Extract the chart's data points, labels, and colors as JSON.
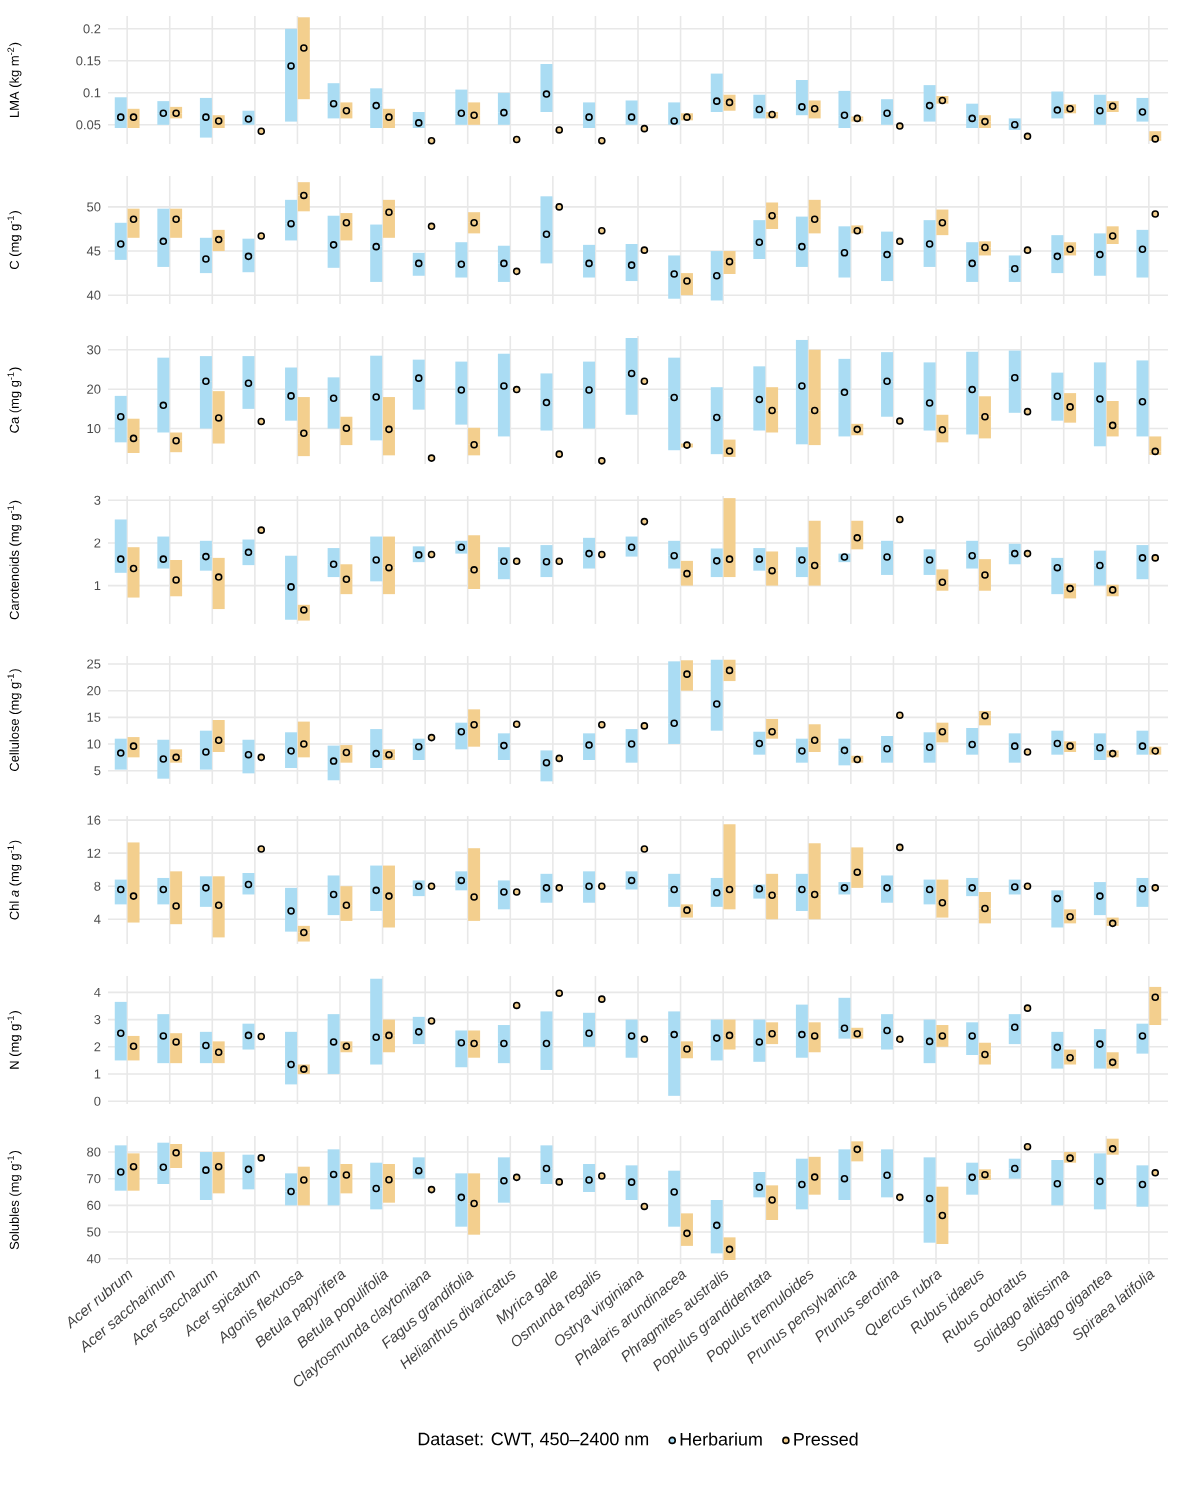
{
  "chart_data": [
    {
      "type": "scatter",
      "ylabel": "LMA (kg m$^{-2}$)",
      "categories": [
        null,
        null,
        null,
        null,
        null,
        null,
        null,
        null,
        null,
        null,
        null,
        null,
        null,
        null,
        null,
        null,
        null,
        null,
        null,
        null,
        null,
        null,
        null,
        null,
        null
      ],
      "ylim": [
        0.02,
        0.22
      ],
      "yticks": [
        0.05,
        0.1,
        0.15,
        0.2
      ],
      "grid": true,
      "tick_labels": "y",
      "series": [
        {
          "color": "#aadcf3",
          "values": [
            0.062,
            0.068,
            0.062,
            0.059,
            0.142,
            0.083,
            0.08,
            0.053,
            0.068,
            0.069,
            0.098,
            0.062,
            0.062,
            0.056,
            0.087,
            0.074,
            0.078,
            0.065,
            0.068,
            0.08,
            0.06,
            0.05,
            0.073,
            0.072,
            0.07
          ],
          "errors": [
            [
              0.045,
              0.093
            ],
            [
              0.05,
              0.087
            ],
            [
              0.03,
              0.092
            ],
            [
              0.05,
              0.072
            ],
            [
              0.055,
              0.2
            ],
            [
              0.06,
              0.115
            ],
            [
              0.045,
              0.107
            ],
            [
              0.045,
              0.07
            ],
            [
              0.05,
              0.105
            ],
            [
              0.05,
              0.1
            ],
            [
              0.07,
              0.145
            ],
            [
              0.045,
              0.085
            ],
            [
              0.05,
              0.088
            ],
            [
              0.05,
              0.085
            ],
            [
              0.07,
              0.13
            ],
            [
              0.06,
              0.097
            ],
            [
              0.065,
              0.12
            ],
            [
              0.045,
              0.103
            ],
            [
              0.05,
              0.09
            ],
            [
              0.055,
              0.112
            ],
            [
              0.045,
              0.083
            ],
            [
              0.042,
              0.06
            ],
            [
              0.06,
              0.102
            ],
            [
              0.05,
              0.097
            ],
            [
              0.055,
              0.092
            ]
          ]
        },
        {
          "color": "#f3cf8e",
          "values": [
            0.062,
            0.068,
            0.056,
            0.04,
            0.17,
            0.072,
            0.062,
            0.025,
            0.065,
            0.027,
            0.042,
            0.025,
            0.044,
            0.062,
            0.085,
            0.066,
            0.075,
            0.06,
            0.048,
            0.088,
            0.055,
            0.032,
            0.075,
            0.079,
            0.028
          ],
          "errors": [
            [
              0.045,
              0.075
            ],
            [
              0.06,
              0.078
            ],
            [
              0.045,
              0.065
            ],
            null,
            [
              0.09,
              0.218
            ],
            [
              0.06,
              0.085
            ],
            [
              0.045,
              0.075
            ],
            null,
            [
              0.05,
              0.085
            ],
            null,
            null,
            null,
            null,
            [
              0.057,
              0.068
            ],
            [
              0.072,
              0.097
            ],
            [
              0.06,
              0.07
            ],
            [
              0.06,
              0.088
            ],
            [
              0.055,
              0.063
            ],
            null,
            [
              0.083,
              0.095
            ],
            [
              0.045,
              0.065
            ],
            null,
            [
              0.068,
              0.082
            ],
            [
              0.07,
              0.087
            ],
            [
              0.025,
              0.04
            ]
          ]
        }
      ]
    },
    {
      "type": "scatter",
      "ylabel": "C (mg g$^{-1}$)",
      "categories": [
        null,
        null,
        null,
        null,
        null,
        null,
        null,
        null,
        null,
        null,
        null,
        null,
        null,
        null,
        null,
        null,
        null,
        null,
        null,
        null,
        null,
        null,
        null,
        null,
        null
      ],
      "ylim": [
        39,
        53.5
      ],
      "yticks": [
        40,
        45,
        50
      ],
      "grid": true,
      "tick_labels": "y",
      "series": [
        {
          "color": "#aadcf3",
          "values": [
            45.8,
            46.1,
            44.1,
            44.4,
            48.1,
            45.7,
            45.5,
            43.6,
            43.5,
            43.6,
            46.9,
            43.6,
            43.4,
            42.4,
            42.2,
            46.0,
            45.5,
            44.8,
            44.6,
            45.8,
            43.6,
            43.0,
            44.4,
            44.6,
            45.2
          ],
          "errors": [
            [
              44,
              48.2
            ],
            [
              43.2,
              49.8
            ],
            [
              42.5,
              46.5
            ],
            [
              42.6,
              46.4
            ],
            [
              46.2,
              50.8
            ],
            [
              43.1,
              49
            ],
            [
              41.5,
              48
            ],
            [
              42.2,
              44.8
            ],
            [
              42,
              46
            ],
            [
              41.5,
              45.6
            ],
            [
              43.6,
              51.2
            ],
            [
              42,
              45.7
            ],
            [
              41.6,
              45.8
            ],
            [
              39.6,
              44.5
            ],
            [
              39.4,
              45
            ],
            [
              44.1,
              48.5
            ],
            [
              43.2,
              48.9
            ],
            [
              42,
              47.8
            ],
            [
              41.6,
              47.2
            ],
            [
              43.2,
              48.5
            ],
            [
              41.5,
              46
            ],
            [
              41.5,
              44.5
            ],
            [
              42.5,
              46.8
            ],
            [
              42.2,
              47
            ],
            [
              42,
              47.4
            ]
          ]
        },
        {
          "color": "#f3cf8e",
          "values": [
            48.6,
            48.6,
            46.3,
            46.7,
            51.3,
            48.2,
            49.4,
            47.8,
            48.2,
            42.7,
            50.0,
            47.3,
            45.1,
            41.6,
            43.8,
            49.0,
            48.6,
            47.3,
            46.1,
            48.2,
            45.4,
            45.1,
            45.2,
            46.7,
            49.2
          ],
          "errors": [
            [
              46.5,
              49.8
            ],
            [
              46.5,
              49.8
            ],
            [
              45,
              47.4
            ],
            null,
            [
              49.5,
              52.8
            ],
            [
              46.2,
              49.3
            ],
            [
              46.5,
              50.8
            ],
            null,
            [
              47,
              49.4
            ],
            null,
            null,
            null,
            null,
            [
              40,
              42.5
            ],
            [
              42.4,
              45
            ],
            [
              47.5,
              50.5
            ],
            [
              47,
              50.8
            ],
            [
              47,
              47.9
            ],
            null,
            [
              46.8,
              49.7
            ],
            [
              44.5,
              46.1
            ],
            null,
            [
              44.5,
              46
            ],
            [
              45.8,
              47.8
            ],
            null
          ]
        }
      ]
    },
    {
      "type": "scatter",
      "ylabel": "Ca (mg g$^{-1}$)",
      "categories": [
        null,
        null,
        null,
        null,
        null,
        null,
        null,
        null,
        null,
        null,
        null,
        null,
        null,
        null,
        null,
        null,
        null,
        null,
        null,
        null,
        null,
        null,
        null,
        null,
        null
      ],
      "ylim": [
        1,
        33.5
      ],
      "yticks": [
        10,
        20,
        30
      ],
      "grid": true,
      "tick_labels": "y",
      "series": [
        {
          "color": "#aadcf3",
          "values": [
            13,
            15.9,
            22,
            21.5,
            18.3,
            17.7,
            18,
            22.8,
            19.8,
            20.8,
            16.6,
            19.8,
            24,
            17.9,
            12.8,
            17.4,
            20.8,
            19.2,
            22,
            16.5,
            19.9,
            22.9,
            18.2,
            17.5,
            16.8
          ],
          "errors": [
            [
              6.5,
              18.3
            ],
            [
              9,
              28
            ],
            [
              10,
              28.4
            ],
            [
              15,
              28.4
            ],
            [
              12,
              25.5
            ],
            [
              10,
              23
            ],
            [
              7,
              28.5
            ],
            [
              14.8,
              27.5
            ],
            [
              11,
              27
            ],
            [
              8,
              29
            ],
            [
              9.5,
              24
            ],
            [
              10,
              27
            ],
            [
              13.5,
              33
            ],
            [
              4.5,
              28
            ],
            [
              3.5,
              20.5
            ],
            [
              9.5,
              25.8
            ],
            [
              6,
              32.5
            ],
            [
              8,
              27.7
            ],
            [
              13,
              29.4
            ],
            [
              9.5,
              26.8
            ],
            [
              8.5,
              29.5
            ],
            [
              14,
              29.8
            ],
            [
              12,
              24.2
            ],
            [
              5.5,
              26.8
            ],
            [
              8,
              27.3
            ]
          ]
        },
        {
          "color": "#f3cf8e",
          "values": [
            7.5,
            6.9,
            12.7,
            11.8,
            8.8,
            10.1,
            9.8,
            2.5,
            5.9,
            19.9,
            3.5,
            1.8,
            22,
            5.8,
            4.3,
            14.6,
            14.6,
            9.8,
            11.9,
            9.7,
            13,
            14.3,
            15.5,
            10.8,
            4.2
          ],
          "errors": [
            [
              3.8,
              12.5
            ],
            [
              4,
              9
            ],
            [
              6.2,
              19.5
            ],
            null,
            [
              3,
              18
            ],
            [
              5.8,
              13
            ],
            [
              3.2,
              18
            ],
            null,
            [
              3.2,
              10.2
            ],
            null,
            null,
            null,
            null,
            [
              5.2,
              6.2
            ],
            [
              2.8,
              7.2
            ],
            [
              9,
              20.5
            ],
            [
              5.8,
              30
            ],
            [
              8.3,
              11.2
            ],
            null,
            [
              6.5,
              13.5
            ],
            [
              7.5,
              18.2
            ],
            null,
            [
              11.5,
              19
            ],
            [
              8,
              17
            ],
            [
              3.3,
              8
            ]
          ]
        }
      ]
    },
    {
      "type": "scatter",
      "ylabel": "Carotenoids (mg g$^{-1}$)",
      "categories": [
        null,
        null,
        null,
        null,
        null,
        null,
        null,
        null,
        null,
        null,
        null,
        null,
        null,
        null,
        null,
        null,
        null,
        null,
        null,
        null,
        null,
        null,
        null,
        null,
        null
      ],
      "ylim": [
        0.1,
        3.1
      ],
      "yticks": [
        1,
        2,
        3
      ],
      "grid": true,
      "tick_labels": "y",
      "series": [
        {
          "color": "#aadcf3",
          "values": [
            1.62,
            1.62,
            1.68,
            1.78,
            0.97,
            1.5,
            1.6,
            1.72,
            1.9,
            1.57,
            1.56,
            1.75,
            1.9,
            1.7,
            1.58,
            1.62,
            1.6,
            1.67,
            1.67,
            1.6,
            1.7,
            1.75,
            1.42,
            1.47,
            1.65
          ],
          "errors": [
            [
              1.3,
              2.55
            ],
            [
              1.4,
              2.15
            ],
            [
              1.35,
              2.05
            ],
            [
              1.48,
              2.08
            ],
            [
              0.2,
              1.7
            ],
            [
              1.2,
              1.88
            ],
            [
              1.1,
              2.15
            ],
            [
              1.55,
              1.92
            ],
            [
              1.75,
              2.05
            ],
            [
              1.15,
              1.9
            ],
            [
              1.2,
              1.95
            ],
            [
              1.4,
              2.12
            ],
            [
              1.68,
              2.15
            ],
            [
              1.4,
              2.05
            ],
            [
              1.2,
              1.87
            ],
            [
              1.35,
              1.88
            ],
            [
              1.2,
              1.9
            ],
            [
              1.55,
              1.75
            ],
            [
              1.25,
              2.05
            ],
            [
              1.25,
              1.85
            ],
            [
              1.4,
              2.05
            ],
            [
              1.5,
              1.98
            ],
            [
              0.8,
              1.65
            ],
            [
              1,
              1.82
            ],
            [
              1.15,
              1.95
            ]
          ]
        },
        {
          "color": "#f3cf8e",
          "values": [
            1.4,
            1.13,
            1.2,
            2.3,
            0.43,
            1.15,
            1.42,
            1.73,
            1.37,
            1.57,
            1.57,
            1.73,
            2.5,
            1.28,
            1.62,
            1.35,
            1.47,
            2.12,
            2.55,
            1.08,
            1.25,
            1.75,
            0.93,
            0.9,
            1.65
          ],
          "errors": [
            [
              0.72,
              1.9
            ],
            [
              0.75,
              1.6
            ],
            [
              0.45,
              1.65
            ],
            null,
            [
              0.18,
              0.55
            ],
            [
              0.8,
              1.5
            ],
            [
              0.8,
              2.15
            ],
            null,
            [
              0.92,
              2.18
            ],
            null,
            null,
            null,
            null,
            [
              1,
              1.58
            ],
            [
              1.2,
              3.05
            ],
            [
              1,
              1.8
            ],
            [
              1,
              2.52
            ],
            [
              1.85,
              2.52
            ],
            null,
            [
              0.88,
              1.38
            ],
            [
              0.88,
              1.62
            ],
            null,
            [
              0.7,
              1.05
            ],
            [
              0.75,
              1.02
            ],
            null
          ]
        }
      ]
    },
    {
      "type": "scatter",
      "ylabel": "Cellulose (mg g$^{-1}$)",
      "categories": [
        null,
        null,
        null,
        null,
        null,
        null,
        null,
        null,
        null,
        null,
        null,
        null,
        null,
        null,
        null,
        null,
        null,
        null,
        null,
        null,
        null,
        null,
        null,
        null,
        null
      ],
      "ylim": [
        2.5,
        26.5
      ],
      "yticks": [
        5,
        10,
        15,
        20,
        25
      ],
      "grid": true,
      "tick_labels": "y",
      "series": [
        {
          "color": "#aadcf3",
          "values": [
            8.3,
            7.2,
            8.5,
            8,
            8.7,
            6.8,
            8.2,
            9.5,
            12.3,
            9.7,
            6.5,
            9.8,
            10,
            13.9,
            17.5,
            10.1,
            8.7,
            8.8,
            9.1,
            9.4,
            9.9,
            9.6,
            10.1,
            9.3,
            9.6
          ],
          "errors": [
            [
              5.2,
              11
            ],
            [
              3.5,
              10.8
            ],
            [
              5.2,
              12.5
            ],
            [
              4.5,
              10.8
            ],
            [
              5.5,
              12.2
            ],
            [
              3.2,
              9.7
            ],
            [
              5.5,
              12.8
            ],
            [
              7,
              11
            ],
            [
              9,
              14
            ],
            [
              7,
              12
            ],
            [
              3,
              8.8
            ],
            [
              7,
              12
            ],
            [
              6.5,
              12.8
            ],
            [
              10,
              25.5
            ],
            [
              12.5,
              25.8
            ],
            [
              8,
              12.3
            ],
            [
              6.5,
              11
            ],
            [
              6,
              11
            ],
            [
              6.5,
              11.5
            ],
            [
              6.5,
              12.2
            ],
            [
              8,
              13
            ],
            [
              6.5,
              12
            ],
            [
              8,
              12.5
            ],
            [
              7,
              12
            ],
            [
              8,
              12.5
            ]
          ]
        },
        {
          "color": "#f3cf8e",
          "values": [
            9.6,
            7.5,
            10.7,
            7.5,
            10,
            8.4,
            8,
            11.2,
            13.6,
            13.7,
            7.3,
            13.6,
            13.4,
            23.1,
            23.8,
            12.3,
            10.7,
            7.1,
            15.4,
            12.3,
            15.3,
            8.5,
            9.6,
            8.2,
            8.7
          ],
          "errors": [
            [
              7.5,
              11.3
            ],
            [
              6.5,
              9
            ],
            [
              8.5,
              14.5
            ],
            null,
            [
              7.5,
              14.2
            ],
            [
              6.5,
              9.8
            ],
            [
              7,
              9
            ],
            null,
            [
              9.5,
              16.5
            ],
            null,
            null,
            null,
            null,
            [
              20,
              25.7
            ],
            [
              21.8,
              25.8
            ],
            [
              11,
              14.7
            ],
            [
              8.5,
              13.7
            ],
            [
              6.5,
              7.8
            ],
            null,
            [
              10.3,
              14
            ],
            [
              13.5,
              16.2
            ],
            null,
            [
              8.5,
              10.5
            ],
            [
              7.5,
              8.8
            ],
            [
              8,
              9.5
            ]
          ]
        }
      ]
    },
    {
      "type": "scatter",
      "ylabel": "Chl *a* (mg g$^{-1}$)",
      "categories": [
        null,
        null,
        null,
        null,
        null,
        null,
        null,
        null,
        null,
        null,
        null,
        null,
        null,
        null,
        null,
        null,
        null,
        null,
        null,
        null,
        null,
        null,
        null,
        null,
        null
      ],
      "ylim": [
        1,
        16.5
      ],
      "yticks": [
        4,
        8,
        12,
        16
      ],
      "grid": true,
      "tick_labels": "y",
      "series": [
        {
          "color": "#aadcf3",
          "values": [
            7.6,
            7.6,
            7.8,
            8.2,
            5,
            7,
            7.5,
            8,
            8.7,
            7.3,
            7.8,
            8,
            8.7,
            7.6,
            7.2,
            7.7,
            7.6,
            7.8,
            7.8,
            7.6,
            7.8,
            7.9,
            6.5,
            6.8,
            7.7
          ],
          "errors": [
            [
              5.8,
              8.8
            ],
            [
              5.8,
              9
            ],
            [
              5.5,
              9.2
            ],
            [
              7,
              9.6
            ],
            [
              2.5,
              7.8
            ],
            [
              4.5,
              9.3
            ],
            [
              5,
              10.5
            ],
            [
              6.8,
              8.7
            ],
            [
              7.5,
              9.8
            ],
            [
              5.2,
              8.7
            ],
            [
              6,
              9.5
            ],
            [
              6,
              9.8
            ],
            [
              7.6,
              9.8
            ],
            [
              5.5,
              9.5
            ],
            [
              5.5,
              9
            ],
            [
              6.5,
              8.2
            ],
            [
              5,
              9.5
            ],
            [
              7,
              8.5
            ],
            [
              6,
              9.3
            ],
            [
              5.8,
              8.8
            ],
            [
              6.8,
              9
            ],
            [
              7,
              8.8
            ],
            [
              3,
              7.5
            ],
            [
              4.5,
              8.5
            ],
            [
              5.5,
              9
            ]
          ]
        },
        {
          "color": "#f3cf8e",
          "values": [
            6.8,
            5.6,
            5.7,
            12.5,
            2.4,
            5.7,
            6.8,
            8,
            6.7,
            7.3,
            7.8,
            8,
            12.5,
            5.1,
            7.6,
            6.9,
            7,
            9.7,
            12.7,
            6,
            5.3,
            8,
            4.3,
            3.5,
            7.8
          ],
          "errors": [
            [
              3.6,
              13.3
            ],
            [
              3.4,
              9.8
            ],
            [
              1.8,
              9.2
            ],
            null,
            [
              1.3,
              3.2
            ],
            [
              3.8,
              8
            ],
            [
              3,
              10.5
            ],
            null,
            [
              3.8,
              12.6
            ],
            null,
            null,
            null,
            null,
            [
              4.2,
              5.8
            ],
            [
              5.2,
              15.5
            ],
            [
              4,
              9.5
            ],
            [
              4,
              13.2
            ],
            [
              7.8,
              12.7
            ],
            null,
            [
              4.2,
              8.8
            ],
            [
              3.5,
              7.3
            ],
            null,
            [
              3.5,
              5.2
            ],
            [
              3.2,
              4.2
            ],
            null
          ]
        }
      ]
    },
    {
      "type": "scatter",
      "ylabel": "N (mg g$^{-1}$)",
      "categories": [
        null,
        null,
        null,
        null,
        null,
        null,
        null,
        null,
        null,
        null,
        null,
        null,
        null,
        null,
        null,
        null,
        null,
        null,
        null,
        null,
        null,
        null,
        null,
        null,
        null
      ],
      "ylim": [
        -0.1,
        4.6
      ],
      "yticks": [
        0,
        1,
        2,
        3,
        4
      ],
      "grid": true,
      "tick_labels": "y",
      "series": [
        {
          "color": "#aadcf3",
          "values": [
            2.5,
            2.4,
            2.05,
            2.42,
            1.35,
            2.18,
            2.35,
            2.55,
            2.15,
            2.12,
            2.12,
            2.5,
            2.4,
            2.45,
            2.32,
            2.18,
            2.45,
            2.68,
            2.6,
            2.2,
            2.4,
            2.72,
            1.98,
            2.1,
            2.4
          ],
          "errors": [
            [
              1.5,
              3.65
            ],
            [
              1.4,
              3.2
            ],
            [
              1.4,
              2.55
            ],
            [
              1.9,
              2.85
            ],
            [
              0.62,
              2.55
            ],
            [
              1,
              3.2
            ],
            [
              1.35,
              4.5
            ],
            [
              2.1,
              3.1
            ],
            [
              1.25,
              2.6
            ],
            [
              1.4,
              2.8
            ],
            [
              1.15,
              3.3
            ],
            [
              2,
              3.25
            ],
            [
              1.6,
              3
            ],
            [
              0.2,
              3.3
            ],
            [
              1.5,
              3
            ],
            [
              1.45,
              3
            ],
            [
              1.6,
              3.55
            ],
            [
              2.3,
              3.8
            ],
            [
              1.9,
              3.2
            ],
            [
              1.4,
              3
            ],
            [
              1.7,
              2.9
            ],
            [
              2.1,
              3.2
            ],
            [
              1.2,
              2.55
            ],
            [
              1.2,
              2.65
            ],
            [
              1.75,
              2.85
            ]
          ]
        },
        {
          "color": "#f3cf8e",
          "values": [
            2.02,
            2.18,
            1.8,
            2.38,
            1.18,
            2.02,
            2.42,
            2.95,
            2.12,
            3.52,
            3.97,
            3.75,
            2.28,
            1.92,
            2.42,
            2.48,
            2.4,
            2.48,
            2.28,
            2.4,
            1.72,
            3.42,
            1.6,
            1.43,
            3.82
          ],
          "errors": [
            [
              1.5,
              2.4
            ],
            [
              1.4,
              2.5
            ],
            [
              1.4,
              2.2
            ],
            null,
            [
              1,
              1.35
            ],
            [
              1.8,
              2.2
            ],
            [
              1.8,
              3
            ],
            null,
            [
              1.6,
              2.6
            ],
            null,
            null,
            null,
            null,
            [
              1.58,
              2.2
            ],
            [
              1.9,
              3
            ],
            [
              2.1,
              2.9
            ],
            [
              1.8,
              2.9
            ],
            [
              2.3,
              2.7
            ],
            null,
            [
              2,
              2.8
            ],
            [
              1.35,
              2.15
            ],
            null,
            [
              1.35,
              1.9
            ],
            [
              1.2,
              1.8
            ],
            [
              2.8,
              4.2
            ]
          ]
        }
      ]
    },
    {
      "type": "scatter",
      "ylabel": "Solubles (mg g$^{-1}$)",
      "legend_title": "Dataset: CWT, 450–2400 nm",
      "legend": "bottom",
      "categories": [
        "Acer rubrum",
        "Acer saccharinum",
        "Acer saccharum",
        "Acer spicatum",
        "Agonis flexuosa",
        "Betula papyrifera",
        "Betula populifolia",
        "Claytosmunda claytoniana",
        "Fagus grandifolia",
        "Helianthus divaricatus",
        "Myrica gale",
        "Osmunda regalis",
        "Ostrya virginiana",
        "Phalaris arundinacea",
        "Phragmites australis",
        "Populus grandidentata",
        "Populus tremuloides",
        "Prunus pensylvanica",
        "Prunus serotina",
        "Quercus rubra",
        "Rubus idaeus",
        "Rubus odoratus",
        "Solidago altissima",
        "Solidago gigantea",
        "Spiraea latifolia"
      ],
      "ylim": [
        38,
        86
      ],
      "yticks": [
        40,
        50,
        60,
        70,
        80
      ],
      "grid": true,
      "series": [
        {
          "name": "Herbarium",
          "color": "#aadcf3",
          "values": [
            72.5,
            74.3,
            73.2,
            73.5,
            65.2,
            71.6,
            66.3,
            73,
            63,
            69.2,
            73.8,
            69.5,
            68.7,
            65,
            52.5,
            66.8,
            67.8,
            70,
            71.3,
            62.6,
            70.5,
            73.8,
            68.1,
            69,
            67.8
          ],
          "errors": [
            [
              65.5,
              82.5
            ],
            [
              68,
              83.5
            ],
            [
              62,
              80
            ],
            [
              66,
              79
            ],
            [
              60,
              72
            ],
            [
              60,
              81
            ],
            [
              58.5,
              76
            ],
            [
              70,
              78
            ],
            [
              52,
              72
            ],
            [
              61,
              78
            ],
            [
              68,
              82.5
            ],
            [
              65,
              75.5
            ],
            [
              62,
              75
            ],
            [
              52,
              73
            ],
            [
              42,
              62
            ],
            [
              63,
              72.5
            ],
            [
              58.5,
              77.5
            ],
            [
              62,
              81
            ],
            [
              63,
              81
            ],
            [
              46,
              78
            ],
            [
              64,
              76
            ],
            [
              70,
              77.5
            ],
            [
              60,
              77
            ],
            [
              58.5,
              79.5
            ],
            [
              59.5,
              75
            ]
          ]
        },
        {
          "name": "Pressed",
          "color": "#f3cf8e",
          "values": [
            74.5,
            79.7,
            74.5,
            77.8,
            69.5,
            71.4,
            69.6,
            65.9,
            60.7,
            70.5,
            68.8,
            71,
            59.6,
            49.5,
            43.5,
            62,
            70.6,
            81,
            63,
            56.2,
            71.5,
            82,
            77.7,
            81.2,
            72.2
          ],
          "errors": [
            [
              65.5,
              79.5
            ],
            [
              74,
              83
            ],
            [
              64.5,
              80
            ],
            null,
            [
              60,
              74.5
            ],
            [
              64.5,
              75.5
            ],
            [
              61,
              75.5
            ],
            null,
            [
              49,
              72
            ],
            null,
            null,
            null,
            null,
            [
              44.8,
              57
            ],
            [
              39.5,
              48
            ],
            [
              54.5,
              67.5
            ],
            [
              64,
              78.2
            ],
            [
              76.5,
              84
            ],
            null,
            [
              45.5,
              67
            ],
            [
              69.5,
              73.5
            ],
            null,
            [
              76,
              80
            ],
            [
              79,
              85
            ],
            null
          ]
        }
      ]
    }
  ]
}
